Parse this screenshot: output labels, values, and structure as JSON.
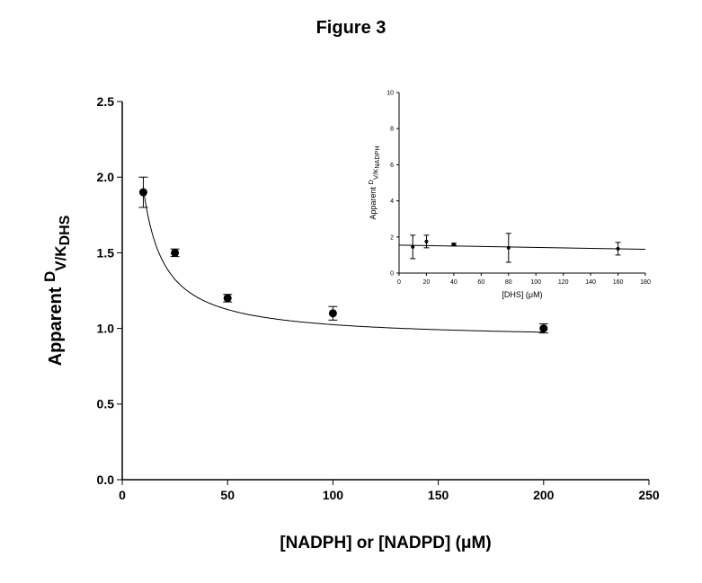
{
  "figure": {
    "title": "Figure 3"
  },
  "chart_data": [
    {
      "type": "scatter",
      "title": "",
      "xlabel": "[NADPH] or [NADPD] (μM)",
      "ylabel": {
        "base": "Apparent ",
        "sup": "D",
        "sub1": "V/K",
        "sub2": "DHS"
      },
      "xlim": [
        0,
        250
      ],
      "ylim": [
        0,
        2.5
      ],
      "xticks": [
        "0",
        "50",
        "100",
        "150",
        "200",
        "250"
      ],
      "yticks": [
        "0.0",
        "0.5",
        "1.0",
        "1.5",
        "2.0",
        "2.5"
      ],
      "series": [
        {
          "x": [
            10,
            25,
            50,
            100,
            200
          ],
          "y": [
            1.9,
            1.5,
            1.2,
            1.1,
            1.0
          ],
          "error": [
            0.1,
            0.025,
            0.025,
            0.045,
            0.03
          ]
        }
      ],
      "fit": "hyperbolic decay curve through points",
      "grid": false
    },
    {
      "type": "scatter",
      "title": "",
      "xlabel": "[DHS] (μM)",
      "ylabel": {
        "base": "Apparent ",
        "sup": "D",
        "sub1": "V/K",
        "sub2": "NADPH"
      },
      "xlim": [
        0,
        180
      ],
      "ylim": [
        0,
        10
      ],
      "xticks": [
        "0",
        "20",
        "40",
        "60",
        "80",
        "100",
        "120",
        "140",
        "160",
        "180"
      ],
      "yticks": [
        "0",
        "2",
        "4",
        "6",
        "8",
        "10"
      ],
      "series": [
        {
          "x": [
            10,
            20,
            40,
            80,
            160
          ],
          "y": [
            1.45,
            1.75,
            1.6,
            1.4,
            1.35
          ],
          "error": [
            0.65,
            0.35,
            0.05,
            0.8,
            0.35
          ]
        }
      ],
      "fit": "nearly flat line",
      "grid": false
    }
  ]
}
